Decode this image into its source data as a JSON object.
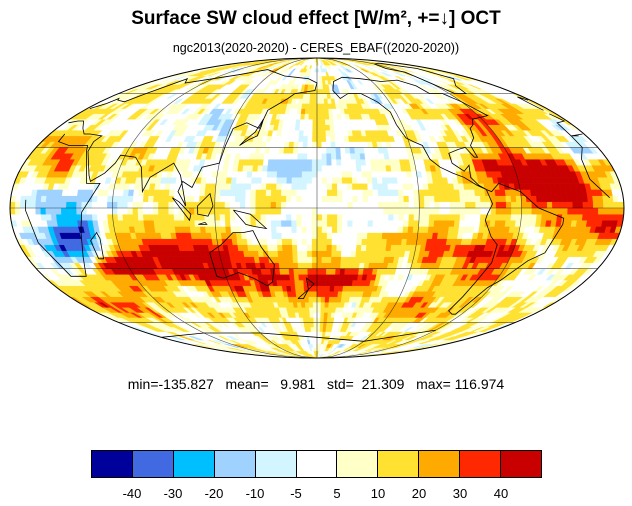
{
  "title": "Surface SW cloud effect [W/m², +=↓]  OCT",
  "subtitle": "ngc2013(2020-2020) - CERES_EBAF((2020-2020))",
  "stats_text": "min=-135.827   mean=   9.981   std=  21.309   max= 116.974",
  "colorbar": {
    "colors": [
      "#00009a",
      "#4169e1",
      "#00bfff",
      "#a0d2ff",
      "#d2f5ff",
      "#ffffff",
      "#ffffc8",
      "#ffe132",
      "#ffaa00",
      "#ff2800",
      "#c80000"
    ],
    "labels": [
      "-40",
      "-30",
      "-20",
      "-10",
      "-5",
      "5",
      "10",
      "20",
      "30",
      "40"
    ]
  },
  "map": {
    "projection": "mollweide",
    "features": [
      "coastlines",
      "lat-lon-grid"
    ]
  }
}
